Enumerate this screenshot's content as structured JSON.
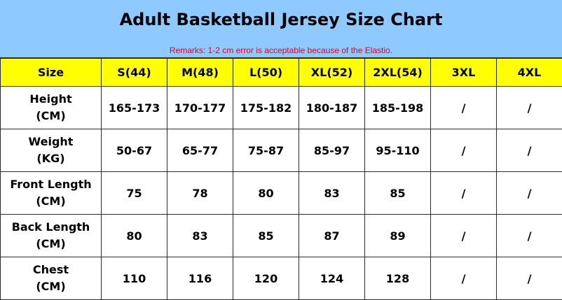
{
  "title": "Adult Basketball Jersey Size Chart",
  "remark": "Remarks: 1-2 cm error is acceptable because of the Elastio.",
  "colors": {
    "header_band": "#8ec9ff",
    "header_row": "#ffff00",
    "remark": "#e0002a"
  },
  "table": {
    "headers": [
      "Size",
      "S(44)",
      "M(48)",
      "L(50)",
      "XL(52)",
      "2XL(54)",
      "3XL",
      "4XL"
    ],
    "rows": [
      {
        "label": "Height",
        "unit": "(CM)",
        "values": [
          "165-173",
          "170-177",
          "175-182",
          "180-187",
          "185-198",
          "/",
          "/"
        ]
      },
      {
        "label": "Weight",
        "unit": "(KG)",
        "values": [
          "50-67",
          "65-77",
          "75-87",
          "85-97",
          "95-110",
          "/",
          "/"
        ]
      },
      {
        "label": "Front Length",
        "unit": "(CM)",
        "values": [
          "75",
          "78",
          "80",
          "83",
          "85",
          "/",
          "/"
        ]
      },
      {
        "label": "Back Length",
        "unit": "(CM)",
        "values": [
          "80",
          "83",
          "85",
          "87",
          "89",
          "/",
          "/"
        ]
      },
      {
        "label": "Chest",
        "unit": "(CM)",
        "values": [
          "110",
          "116",
          "120",
          "124",
          "128",
          "/",
          "/"
        ]
      }
    ]
  }
}
